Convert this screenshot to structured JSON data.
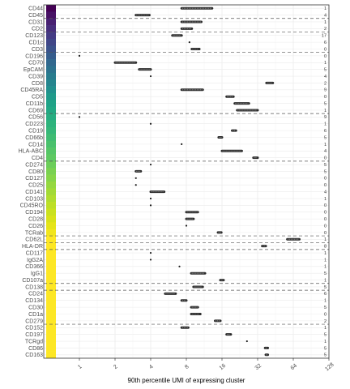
{
  "chart_data": {
    "type": "range",
    "xlabel": "90th percentile UMI of expressing cluster",
    "x_scale": "log2",
    "xlim": [
      0.5,
      128
    ],
    "x_ticks": [
      1,
      2,
      4,
      8,
      16,
      32,
      64,
      128
    ],
    "x_tick_labels": [
      "1",
      "2",
      "4",
      "8",
      "16",
      "32",
      "64",
      "128"
    ],
    "grid": true,
    "rows": [
      {
        "label": "CD44",
        "min": 7.3,
        "max": 13.2,
        "count": "1",
        "color": "#440154"
      },
      {
        "label": "CD45",
        "min": 3.0,
        "max": 3.9,
        "count": "4",
        "color": "#471164"
      },
      {
        "label": "CD31",
        "min": 7.3,
        "max": 10.7,
        "count": "1",
        "color": "#482072"
      },
      {
        "label": "CD2",
        "min": 7.3,
        "max": 8.9,
        "count": "2",
        "color": "#472e7c"
      },
      {
        "label": "CD123",
        "min": 6.1,
        "max": 7.3,
        "count": "17",
        "color": "#443b84"
      },
      {
        "label": "CD1c",
        "min": 8.5,
        "max": 8.5,
        "count": "6",
        "color": "#404688"
      },
      {
        "label": "CD3",
        "min": 8.9,
        "max": 10.3,
        "count": "0",
        "color": "#3b528b"
      },
      {
        "label": "CD196",
        "min": 1.0,
        "max": 1.0,
        "count": "0",
        "color": "#365d8d"
      },
      {
        "label": "CD70",
        "min": 2.0,
        "max": 3.0,
        "count": "1",
        "color": "#31688e"
      },
      {
        "label": "EpCAM",
        "min": 3.2,
        "max": 4.0,
        "count": "5",
        "color": "#2c728e"
      },
      {
        "label": "CD39",
        "min": 4.0,
        "max": 4.0,
        "count": "4",
        "color": "#287c8e"
      },
      {
        "label": "CD8",
        "min": 38.0,
        "max": 43.0,
        "count": "2",
        "color": "#25858e"
      },
      {
        "label": "CD45RA",
        "min": 7.3,
        "max": 11.0,
        "count": "9",
        "color": "#21908d"
      },
      {
        "label": "CD5",
        "min": 17.5,
        "max": 20.0,
        "count": "0",
        "color": "#1f9a8a"
      },
      {
        "label": "CD11b",
        "min": 20.5,
        "max": 27.0,
        "count": "5",
        "color": "#1fa287"
      },
      {
        "label": "CD69",
        "min": 21.5,
        "max": 32.0,
        "count": "1",
        "color": "#22a884"
      },
      {
        "label": "CD56",
        "min": 1.0,
        "max": 1.0,
        "count": "9",
        "color": "#27ad81"
      },
      {
        "label": "CD223",
        "min": 4.0,
        "max": 4.0,
        "count": "1",
        "color": "#2eb37c"
      },
      {
        "label": "CD19",
        "min": 19.5,
        "max": 21.0,
        "count": "6",
        "color": "#35b779"
      },
      {
        "label": "CD66b",
        "min": 15.0,
        "max": 16.0,
        "count": "5",
        "color": "#3fbc73"
      },
      {
        "label": "CD14",
        "min": 7.3,
        "max": 7.3,
        "count": "1",
        "color": "#4ac16d"
      },
      {
        "label": "HLA-ABC",
        "min": 16.0,
        "max": 23.5,
        "count": "4",
        "color": "#55c667"
      },
      {
        "label": "CD4",
        "min": 29.5,
        "max": 32.0,
        "count": "0",
        "color": "#5ec962"
      },
      {
        "label": "CD274",
        "min": 4.0,
        "max": 4.0,
        "count": "5",
        "color": "#6ccd5a"
      },
      {
        "label": "CD80",
        "min": 3.0,
        "max": 3.3,
        "count": "5",
        "color": "#7ad151"
      },
      {
        "label": "CD127",
        "min": 3.0,
        "max": 3.0,
        "count": "0",
        "color": "#86d549"
      },
      {
        "label": "CD25",
        "min": 3.0,
        "max": 3.0,
        "count": "0",
        "color": "#95d840"
      },
      {
        "label": "CD141",
        "min": 4.0,
        "max": 5.2,
        "count": "4",
        "color": "#a2da37"
      },
      {
        "label": "CD103",
        "min": 4.0,
        "max": 4.0,
        "count": "1",
        "color": "#b0dd2f"
      },
      {
        "label": "CD45RO",
        "min": 4.0,
        "max": 4.0,
        "count": "0",
        "color": "#bddf26"
      },
      {
        "label": "CD194",
        "min": 8.0,
        "max": 10.0,
        "count": "0",
        "color": "#cae11f"
      },
      {
        "label": "CD28",
        "min": 8.0,
        "max": 9.2,
        "count": "0",
        "color": "#d8e219"
      },
      {
        "label": "CD26",
        "min": 8.0,
        "max": 8.0,
        "count": "0",
        "color": "#e5e419"
      },
      {
        "label": "TCRab",
        "min": 14.8,
        "max": 15.8,
        "count": "0",
        "color": "#f1e51d"
      },
      {
        "label": "CD62L",
        "min": 57.0,
        "max": 72.0,
        "count": "1",
        "color": "#fde725"
      },
      {
        "label": "HLA-DR",
        "min": 35.0,
        "max": 37.5,
        "count": "8",
        "color": "#fde725"
      },
      {
        "label": "CD117",
        "min": 4.0,
        "max": 4.0,
        "count": "1",
        "color": "#fde725"
      },
      {
        "label": "IgG2A",
        "min": 4.0,
        "max": 4.0,
        "count": "1",
        "color": "#fde725"
      },
      {
        "label": "CD366",
        "min": 7.0,
        "max": 7.0,
        "count": "1",
        "color": "#fde725"
      },
      {
        "label": "IgG1",
        "min": 8.8,
        "max": 11.5,
        "count": "5",
        "color": "#fde725"
      },
      {
        "label": "CD107a",
        "min": 15.5,
        "max": 16.5,
        "count": "1",
        "color": "#fde725"
      },
      {
        "label": "CD138",
        "min": 9.2,
        "max": 11.0,
        "count": "5",
        "color": "#fde725"
      },
      {
        "label": "CD24",
        "min": 5.3,
        "max": 6.5,
        "count": "6",
        "color": "#fde725"
      },
      {
        "label": "CD134",
        "min": 7.3,
        "max": 8.0,
        "count": "1",
        "color": "#fde725"
      },
      {
        "label": "CD30",
        "min": 8.8,
        "max": 10.0,
        "count": "5",
        "color": "#fde725"
      },
      {
        "label": "CD1a",
        "min": 8.8,
        "max": 10.5,
        "count": "0",
        "color": "#fde725"
      },
      {
        "label": "CD279",
        "min": 14.0,
        "max": 15.5,
        "count": "2",
        "color": "#fde725"
      },
      {
        "label": "CD152",
        "min": 7.3,
        "max": 8.3,
        "count": "1",
        "color": "#fde725"
      },
      {
        "label": "CD197",
        "min": 17.5,
        "max": 19.0,
        "count": "5",
        "color": "#fde725"
      },
      {
        "label": "TCRgd",
        "min": 26.0,
        "max": 26.0,
        "count": "1",
        "color": "#fde725"
      },
      {
        "label": "CD86",
        "min": 37.0,
        "max": 39.0,
        "count": "5",
        "color": "#fde725"
      },
      {
        "label": "CD163",
        "min": 37.5,
        "max": 39.0,
        "count": "5",
        "color": "#fde725"
      }
    ],
    "group_dividers_after": [
      "CD45",
      "CD2",
      "CD3",
      "CD69",
      "CD4",
      "TCRab",
      "CD62L",
      "HLA-DR",
      "CD107a",
      "CD138",
      "CD279"
    ]
  }
}
